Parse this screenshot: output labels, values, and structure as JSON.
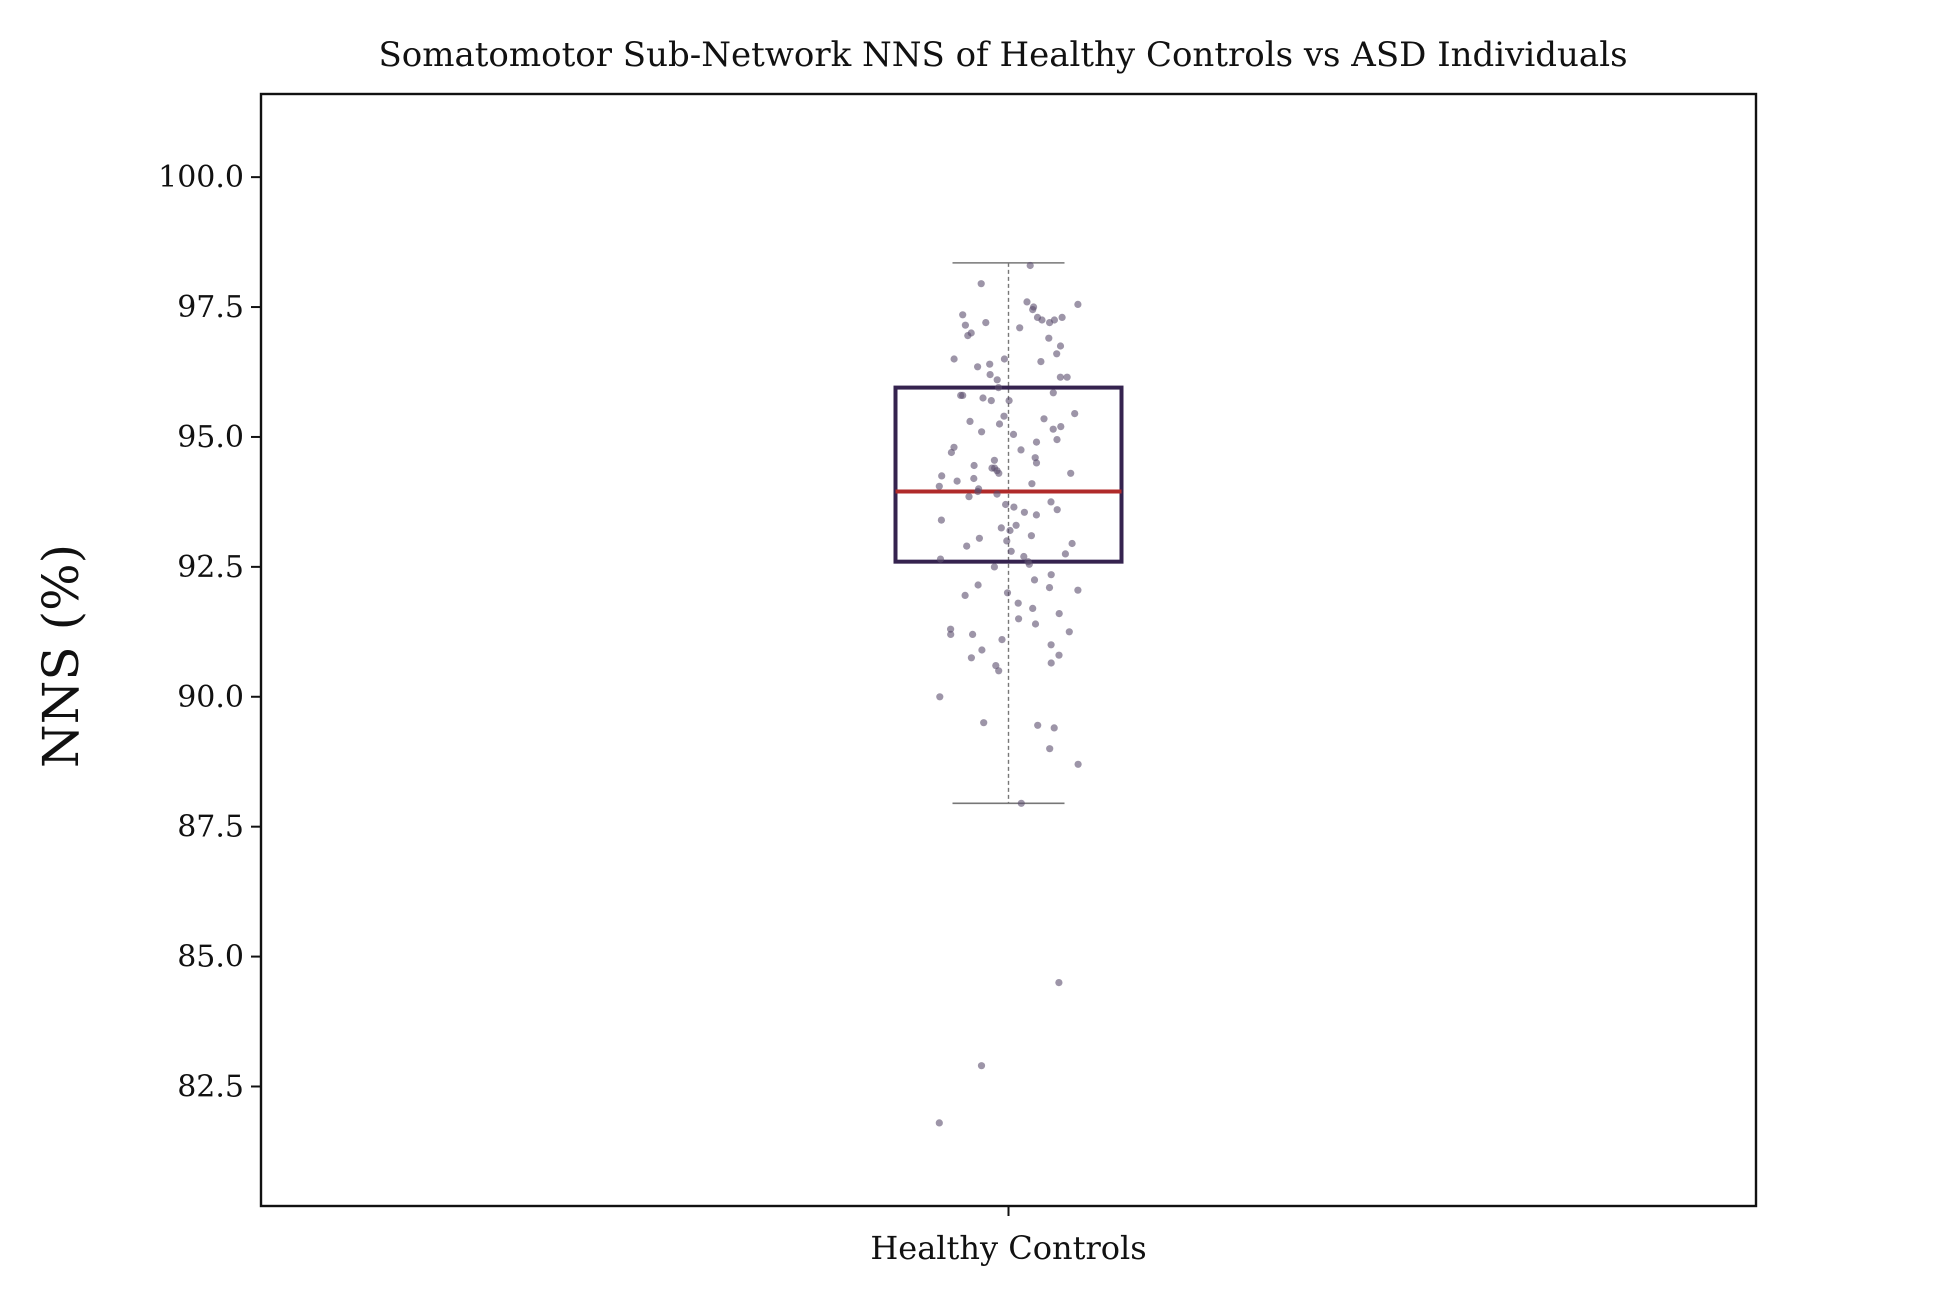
{
  "colors": {
    "box": "#35234f",
    "median": "#b02a2a",
    "whisker": "#777777",
    "points": "#5c4f6e",
    "frame": "#111111"
  },
  "chart_data": {
    "type": "box",
    "title": "Somatomotor Sub-Network NNS of Healthy Controls vs ASD Individuals",
    "xlabel": "",
    "ylabel": "NNS (%)",
    "ylim": [
      80.2,
      101.6
    ],
    "yticks": [
      "82.5",
      "85.0",
      "87.5",
      "90.0",
      "92.5",
      "95.0",
      "97.5",
      "100.0"
    ],
    "categories": [
      "Healthy Controls"
    ],
    "grid": false,
    "box": {
      "q1": 92.6,
      "median": 93.95,
      "q3": 95.95,
      "whisker_low": 87.95,
      "whisker_high": 98.35
    },
    "points": [
      98.3,
      97.95,
      97.6,
      97.55,
      97.5,
      97.45,
      97.35,
      97.3,
      97.3,
      97.25,
      97.25,
      97.2,
      97.2,
      97.15,
      97.1,
      97.0,
      96.95,
      96.9,
      96.75,
      96.6,
      96.5,
      96.5,
      96.45,
      96.4,
      96.35,
      96.2,
      96.15,
      96.15,
      96.1,
      95.95,
      95.85,
      95.8,
      95.8,
      95.75,
      95.7,
      95.7,
      95.45,
      95.4,
      95.35,
      95.3,
      95.25,
      95.2,
      95.15,
      95.1,
      95.05,
      94.95,
      94.9,
      94.8,
      94.75,
      94.7,
      94.6,
      94.55,
      94.5,
      94.45,
      94.4,
      94.4,
      94.35,
      94.3,
      94.3,
      94.25,
      94.2,
      94.15,
      94.1,
      94.05,
      94.0,
      93.95,
      93.9,
      93.85,
      93.75,
      93.7,
      93.65,
      93.6,
      93.55,
      93.5,
      93.4,
      93.3,
      93.25,
      93.2,
      93.1,
      93.05,
      93.0,
      92.95,
      92.9,
      92.8,
      92.75,
      92.7,
      92.65,
      92.6,
      92.55,
      92.5,
      92.35,
      92.25,
      92.15,
      92.1,
      92.05,
      92.0,
      91.95,
      91.8,
      91.7,
      91.6,
      91.5,
      91.4,
      91.3,
      91.25,
      91.2,
      91.2,
      91.1,
      91.0,
      90.9,
      90.8,
      90.75,
      90.65,
      90.6,
      90.5,
      90.0,
      89.5,
      89.45,
      89.4,
      89.0,
      88.7,
      87.95,
      84.5,
      82.9,
      81.8
    ]
  }
}
